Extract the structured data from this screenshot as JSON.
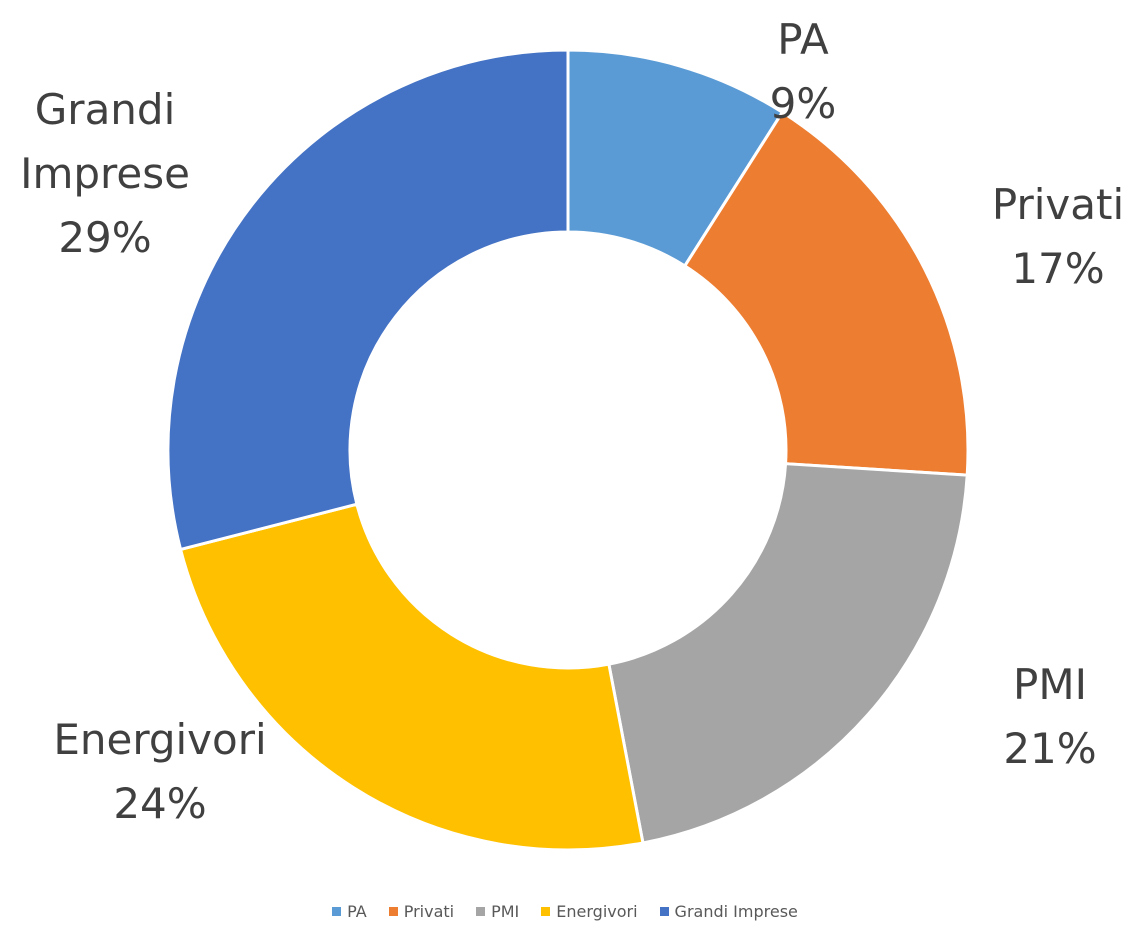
{
  "chart_data": {
    "type": "donut",
    "categories": [
      "PA",
      "Privati",
      "PMI",
      "Energivori",
      "Grandi Imprese"
    ],
    "values": [
      9,
      17,
      21,
      24,
      29
    ],
    "value_labels": [
      "9%",
      "17%",
      "21%",
      "24%",
      "29%"
    ],
    "colors": [
      "#5b9bd5",
      "#ed7d31",
      "#a5a5a5",
      "#ffc000",
      "#4472c4"
    ],
    "legend": "bottom"
  }
}
